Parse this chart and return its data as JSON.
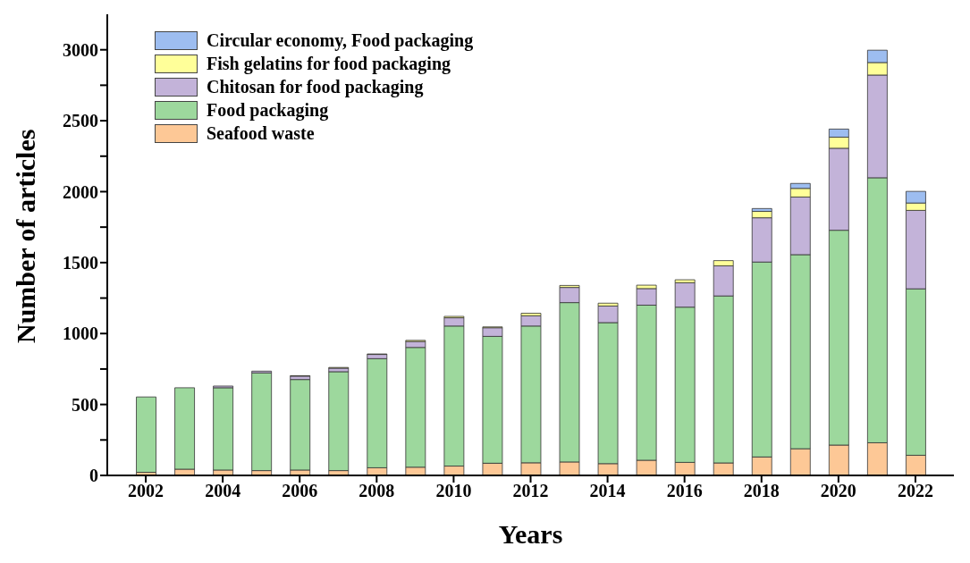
{
  "chart_data": {
    "type": "bar",
    "stacked": true,
    "xlabel": "Years",
    "ylabel": "Number of articles",
    "x": [
      2002,
      2003,
      2004,
      2005,
      2006,
      2007,
      2008,
      2009,
      2010,
      2011,
      2012,
      2013,
      2014,
      2015,
      2016,
      2017,
      2018,
      2019,
      2020,
      2021,
      2022
    ],
    "xlim": [
      2001,
      2023
    ],
    "xticks": [
      2002,
      2004,
      2006,
      2008,
      2010,
      2012,
      2014,
      2016,
      2018,
      2020,
      2022
    ],
    "ylim": [
      0,
      3250
    ],
    "yticks": [
      0,
      {
        "value": 250,
        "label": null
      },
      500,
      {
        "value": 750,
        "label": null
      },
      1000,
      {
        "value": 1250,
        "label": null
      },
      1500,
      {
        "value": 1750,
        "label": null
      },
      2000,
      {
        "value": 2250,
        "label": null
      },
      2500,
      {
        "value": 2750,
        "label": null
      },
      3000
    ],
    "legend": "top left",
    "grid": false,
    "series": [
      {
        "name": "Seafood waste",
        "color": "#fdc896",
        "values": [
          22,
          44,
          38,
          34,
          38,
          34,
          54,
          58,
          66,
          86,
          89,
          95,
          83,
          107,
          92,
          88,
          130,
          188,
          214,
          230,
          142
        ]
      },
      {
        "name": "Food packaging",
        "color": "#9dd89d",
        "values": [
          531,
          574,
          580,
          689,
          638,
          697,
          769,
          844,
          987,
          894,
          964,
          1123,
          994,
          1093,
          1094,
          1177,
          1374,
          1368,
          1514,
          1868,
          1173
        ]
      },
      {
        "name": "Chitosan for food packaging",
        "color": "#c3b3d9",
        "values": [
          null,
          null,
          12,
          12,
          24,
          25,
          30,
          42,
          58,
          61,
          72,
          107,
          117,
          117,
          172,
          212,
          312,
          406,
          578,
          724,
          553
        ]
      },
      {
        "name": "Fish gelatins for food packaging",
        "color": "#ffff99",
        "values": [
          null,
          null,
          null,
          null,
          3,
          5,
          3,
          8,
          10,
          6,
          18,
          14,
          20,
          24,
          21,
          37,
          45,
          61,
          78,
          88,
          52
        ]
      },
      {
        "name": "Circular economy, Food packaging",
        "color": "#9dbdf0",
        "values": [
          0,
          0,
          0,
          0,
          0,
          0,
          0,
          0,
          0,
          0,
          0,
          0,
          0,
          0,
          0,
          0,
          20,
          35,
          57,
          87,
          82
        ]
      }
    ]
  }
}
